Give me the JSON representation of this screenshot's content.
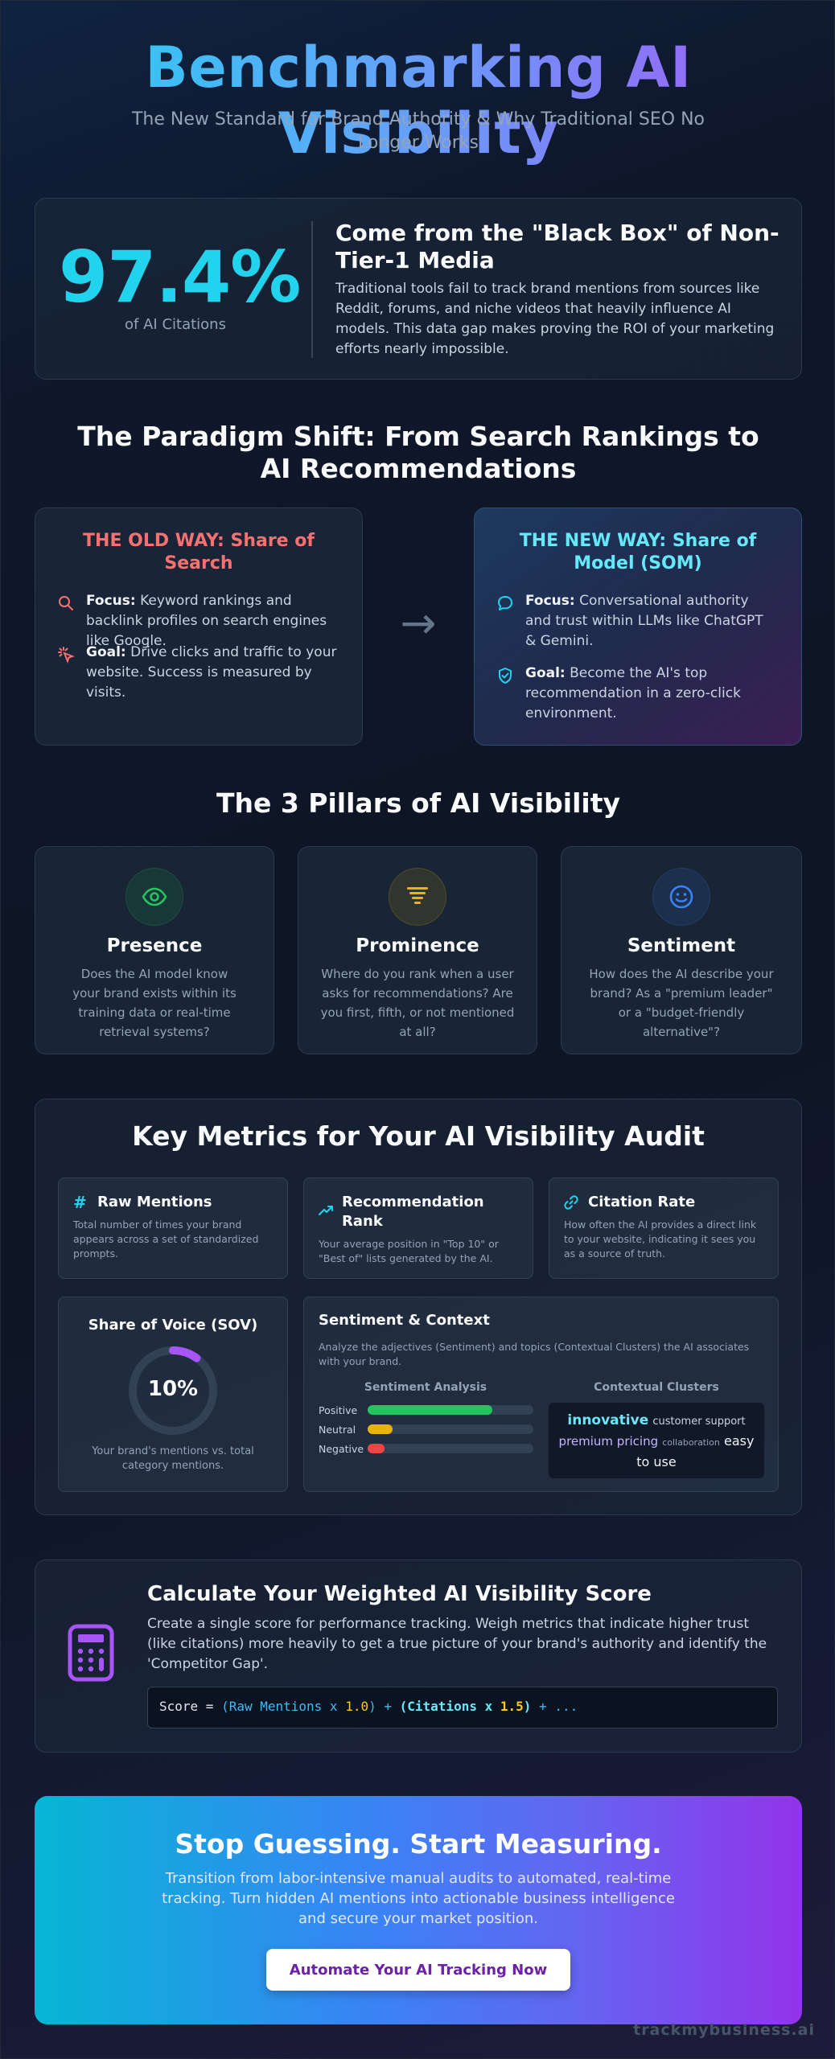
{
  "header": {
    "title": "Benchmarking AI Visibility",
    "subtitle": "The New Standard for Brand Authority & Why Traditional SEO No Longer Works"
  },
  "stat": {
    "value": "97.4%",
    "label": "of AI Citations",
    "title": "Come from the \"Black Box\" of Non-Tier-1 Media",
    "body": "Traditional tools fail to track brand mentions from sources like Reddit, forums, and niche videos that heavily influence AI models. This data gap makes proving the ROI of your marketing efforts nearly impossible."
  },
  "paradigm": {
    "heading": "The Paradigm Shift: From Search Rankings to AI Recommendations",
    "arrow": "→",
    "old_way": {
      "title": "THE OLD WAY: Share of Search",
      "items": [
        {
          "label": "Focus:",
          "text": "Keyword rankings and backlink profiles on search engines like Google.",
          "icon": "search-icon"
        },
        {
          "label": "Goal:",
          "text": "Drive clicks and traffic to your website. Success is measured by visits.",
          "icon": "click-icon"
        }
      ]
    },
    "new_way": {
      "title": "THE NEW WAY: Share of Model (SOM)",
      "items": [
        {
          "label": "Focus:",
          "text": "Conversational authority and trust within LLMs like ChatGPT & Gemini.",
          "icon": "chat-bubble-icon"
        },
        {
          "label": "Goal:",
          "text": "Become the AI's top recommendation in a zero-click environment.",
          "icon": "shield-check-icon"
        }
      ]
    }
  },
  "pillars": {
    "heading": "The 3 Pillars of AI Visibility",
    "items": [
      {
        "name": "Presence",
        "desc": "Does the AI model know your brand exists within its training data or real-time retrieval systems?",
        "icon": "eye-icon",
        "color": "#22c55e"
      },
      {
        "name": "Prominence",
        "desc": "Where do you rank when a user asks for recommendations? Are you first, fifth, or not mentioned at all?",
        "icon": "funnel-icon",
        "color": "#eab308"
      },
      {
        "name": "Sentiment",
        "desc": "How does the AI describe your brand? As a \"premium leader\" or a \"budget-friendly alternative\"?",
        "icon": "smile-icon",
        "color": "#3b82f6"
      }
    ]
  },
  "metrics": {
    "heading": "Key Metrics for Your AI Visibility Audit",
    "cards": [
      {
        "title": "Raw Mentions",
        "desc": "Total number of times your brand appears across a set of standardized prompts.",
        "icon": "hash-icon"
      },
      {
        "title": "Recommendation Rank",
        "desc": "Your average position in \"Top 10\" or \"Best of\" lists generated by the AI.",
        "icon": "trend-up-icon"
      },
      {
        "title": "Citation Rate",
        "desc": "How often the AI provides a direct link to your website, indicating it sees you as a source of truth.",
        "icon": "link-icon"
      }
    ],
    "sov": {
      "title": "Share of Voice (SOV)",
      "value": "10%",
      "fraction": 0.1,
      "desc": "Your brand's mentions vs. total category mentions."
    },
    "sentiment_context": {
      "title": "Sentiment & Context",
      "desc": "Analyze the adjectives (Sentiment) and topics (Contextual Clusters) the AI associates with your brand.",
      "analysis_title": "Sentiment Analysis",
      "bars": [
        {
          "label": "Positive",
          "fraction": 0.75,
          "color": "#22c55e"
        },
        {
          "label": "Neutral",
          "fraction": 0.15,
          "color": "#eab308"
        },
        {
          "label": "Negative",
          "fraction": 0.1,
          "color": "#ef4444"
        }
      ],
      "clusters_title": "Contextual Clusters",
      "clusters": [
        {
          "word": "innovative",
          "style": "big-cyan"
        },
        {
          "word": "customer support",
          "style": "small"
        },
        {
          "word": "premium pricing",
          "style": "mid-purple"
        },
        {
          "word": "collaboration",
          "style": "tiny"
        },
        {
          "word": "easy to use",
          "style": "mid-white"
        }
      ]
    }
  },
  "score": {
    "title": "Calculate Your Weighted AI Visibility Score",
    "body": "Create a single score for performance tracking. Weigh metrics that indicate higher trust (like citations) more heavily to get a true picture of your brand's authority and identify the 'Competitor Gap'.",
    "icon": "calculator-icon",
    "formula": {
      "prefix": "Score = ",
      "t1_open": "(Raw Mentions x ",
      "t1_num": "1.0",
      "t1_close": ")",
      "plus1": " + ",
      "t2_open": "(Citations x ",
      "t2_num": "1.5",
      "t2_close": ")",
      "plus2": " + ...",
      "colors": {
        "paren": "#38bdf8",
        "num": "#facc15",
        "bold": "#67e8f9"
      }
    }
  },
  "cta": {
    "title": "Stop Guessing. Start Measuring.",
    "body": "Transition from labor-intensive manual audits to automated, real-time tracking. Turn hidden AI mentions into actionable business intelligence and secure your market position.",
    "button": "Automate Your AI Tracking Now"
  },
  "footer": {
    "brand": "trackmybusiness.ai"
  }
}
